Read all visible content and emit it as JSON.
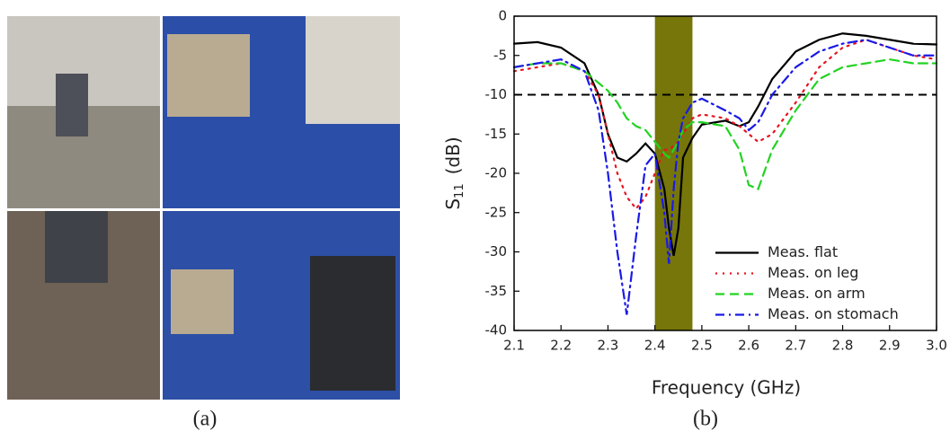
{
  "captions": [
    "(a)",
    "(b)"
  ],
  "chart_data": {
    "type": "line",
    "x_label": "Frequency (GHz)",
    "y_label": "S",
    "y_label_sub": "11",
    "y_label_unit": "(dB)",
    "xlim": [
      2.1,
      3.0
    ],
    "ylim": [
      -40,
      0
    ],
    "xticks": [
      2.1,
      2.2,
      2.3,
      2.4,
      2.5,
      2.6,
      2.7,
      2.8,
      2.9,
      {
        "value": 3,
        "label": "3.0"
      }
    ],
    "yticks": [
      0,
      -5,
      -10,
      -15,
      -20,
      -25,
      -30,
      -35,
      -40
    ],
    "band": [
      2.4,
      2.48
    ],
    "band_color": "#76760a",
    "threshold": -10,
    "legend": "lower right",
    "x": [
      2.1,
      2.15,
      2.2,
      2.25,
      2.28,
      2.3,
      2.32,
      2.34,
      2.36,
      2.38,
      2.4,
      2.42,
      2.43,
      2.44,
      2.45,
      2.46,
      2.48,
      2.5,
      2.55,
      2.58,
      2.6,
      2.62,
      2.65,
      2.7,
      2.75,
      2.8,
      2.85,
      2.9,
      2.95,
      3.0
    ],
    "series": [
      {
        "name": "Meas. flat",
        "color": "#000000",
        "dash": "solid",
        "values": [
          -3.5,
          -3.3,
          -4.0,
          -6,
          -10,
          -15,
          -18,
          -18.5,
          -17.5,
          -16.2,
          -17.5,
          -22,
          -27,
          -30.5,
          -27,
          -18,
          -15.5,
          -13.8,
          -13.3,
          -14,
          -13.5,
          -11.5,
          -8,
          -4.5,
          -3,
          -2.2,
          -2.5,
          -3,
          -3.5,
          -3.6
        ]
      },
      {
        "name": "Meas. on leg",
        "color": "#e8141e",
        "dash": "dot",
        "values": [
          -7,
          -6.5,
          -6,
          -7,
          -10,
          -15,
          -20,
          -23,
          -24.5,
          -23,
          -20,
          -17,
          -17,
          -16.5,
          -16,
          -15,
          -13,
          -12.5,
          -13,
          -14,
          -15,
          -16,
          -15,
          -11,
          -6.5,
          -4,
          -3,
          -4,
          -5,
          -5.5
        ]
      },
      {
        "name": "Meas. on arm",
        "color": "#22d322",
        "dash": "dash",
        "values": [
          -6.5,
          -6,
          -6,
          -7,
          -8.5,
          -9.5,
          -11,
          -13,
          -14,
          -14.5,
          -16,
          -17.5,
          -18,
          -17,
          -16,
          -14.5,
          -13.5,
          -13.5,
          -14,
          -17,
          -21.5,
          -22,
          -17,
          -12,
          -8,
          -6.5,
          -6,
          -5.5,
          -6,
          -6
        ]
      },
      {
        "name": "Meas. on stomach",
        "color": "#1a1ae6",
        "dash": "dashdot",
        "values": [
          -6.5,
          -6,
          -5.5,
          -7,
          -12,
          -20,
          -30,
          -38,
          -28,
          -19,
          -17.5,
          -25,
          -31.5,
          -22,
          -16,
          -13,
          -11,
          -10.5,
          -12,
          -13,
          -14.5,
          -13.5,
          -10,
          -6.5,
          -4.5,
          -3.5,
          -3,
          -4,
          -5,
          -5
        ]
      }
    ]
  }
}
